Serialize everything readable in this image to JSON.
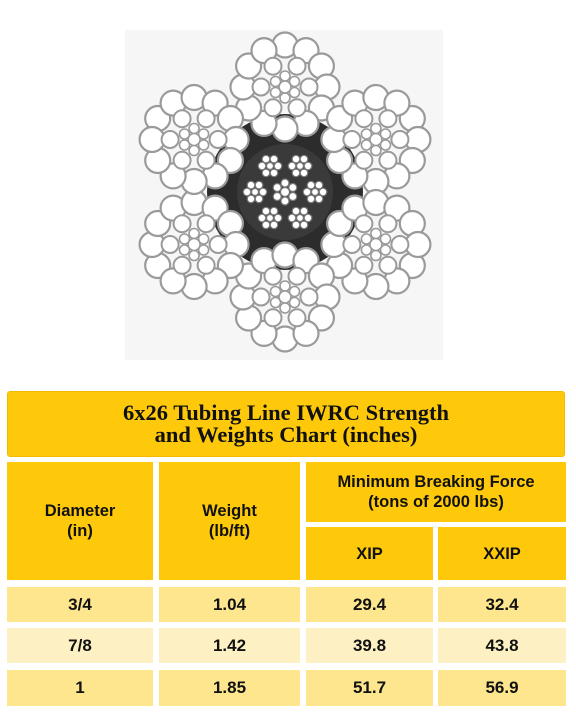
{
  "table": {
    "title_line1": "6x26 Tubing Line IWRC Strength",
    "title_line2": "and Weights Chart (inches)",
    "headers": {
      "diameter_line1": "Diameter",
      "diameter_line2": "(in)",
      "weight_line1": "Weight",
      "weight_line2": "(lb/ft)",
      "mbf_line1": "Minimum Breaking Force",
      "mbf_line2": "(tons of 2000 lbs)",
      "xip": "XIP",
      "xxip": "XXIP"
    },
    "rows": [
      {
        "diameter": "3/4",
        "weight": "1.04",
        "xip": "29.4",
        "xxip": "32.4"
      },
      {
        "diameter": "7/8",
        "weight": "1.42",
        "xip": "39.8",
        "xxip": "43.8"
      },
      {
        "diameter": "1",
        "weight": "1.85",
        "xip": "51.7",
        "xxip": "56.9"
      }
    ]
  },
  "colors": {
    "header_yellow": "#fdc90a",
    "row_yellow": "#fde68e",
    "row_pale": "#fdf1c3"
  }
}
